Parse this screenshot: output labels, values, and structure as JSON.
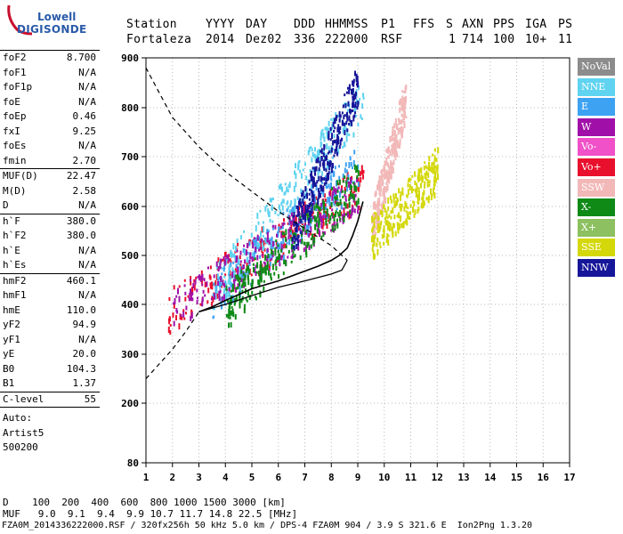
{
  "logo": {
    "line1": "Lowell",
    "line2": "DIGISONDE"
  },
  "header": {
    "labels": {
      "station": "Station",
      "year": "YYYY",
      "day": "DAY",
      "ddd": "DDD",
      "time": "HHMMSS",
      "p1": "P1",
      "ffs": "FFS",
      "s": "S",
      "axn": "AXN",
      "pps": "PPS",
      "iga": "IGA",
      "ps": "PS"
    },
    "values": {
      "station": "Fortaleza",
      "year": "2014",
      "day": "Dez02",
      "ddd": "336",
      "time": "222000",
      "p1": "RSF",
      "ffs": "",
      "s": "1",
      "axn": "714",
      "pps": "100",
      "iga": "10+",
      "ps": "11"
    }
  },
  "params": {
    "group1": [
      {
        "name": "foF2",
        "value": "8.700"
      },
      {
        "name": "foF1",
        "value": "N/A"
      },
      {
        "name": "foF1p",
        "value": "N/A"
      },
      {
        "name": "foE",
        "value": "N/A"
      },
      {
        "name": "foEp",
        "value": "0.46"
      },
      {
        "name": "fxI",
        "value": "9.25"
      },
      {
        "name": "foEs",
        "value": "N/A"
      },
      {
        "name": "fmin",
        "value": "2.70"
      }
    ],
    "group2": [
      {
        "name": "MUF(D)",
        "value": "22.47"
      },
      {
        "name": "M(D)",
        "value": "2.58"
      },
      {
        "name": "D",
        "value": "N/A"
      }
    ],
    "group3": [
      {
        "name": "h`F",
        "value": "380.0"
      },
      {
        "name": "h`F2",
        "value": "380.0"
      },
      {
        "name": "h`E",
        "value": "N/A"
      },
      {
        "name": "h`Es",
        "value": "N/A"
      }
    ],
    "group4": [
      {
        "name": "hmF2",
        "value": "460.1"
      },
      {
        "name": "hmF1",
        "value": "N/A"
      },
      {
        "name": "hmE",
        "value": "110.0"
      },
      {
        "name": "yF2",
        "value": "94.9"
      },
      {
        "name": "yF1",
        "value": "N/A"
      },
      {
        "name": "yE",
        "value": "20.0"
      },
      {
        "name": "B0",
        "value": "104.3"
      },
      {
        "name": "B1",
        "value": "1.37"
      }
    ],
    "group5": [
      {
        "name": "C-level",
        "value": "55"
      }
    ],
    "auto": [
      "Auto:",
      "Artist5",
      "500200"
    ]
  },
  "legend": [
    {
      "label": "NoVal",
      "color": "#8c8c8c"
    },
    {
      "label": "NNE",
      "color": "#5fd3f0"
    },
    {
      "label": "E",
      "color": "#3ea2f2"
    },
    {
      "label": "W",
      "color": "#a010a8"
    },
    {
      "label": "Vo-",
      "color": "#f050c8"
    },
    {
      "label": "Vo+",
      "color": "#e8102c"
    },
    {
      "label": "SSW",
      "color": "#f2b8b8"
    },
    {
      "label": "X-",
      "color": "#0f8a17"
    },
    {
      "label": "X+",
      "color": "#8cc060"
    },
    {
      "label": "SSE",
      "color": "#d4d80a"
    },
    {
      "label": "NNW",
      "color": "#16169a"
    }
  ],
  "chart_data": {
    "type": "scatter",
    "title": "",
    "xlabel": "",
    "ylabel": "",
    "xlim": [
      1,
      17
    ],
    "ylim": [
      80,
      900
    ],
    "x_ticks": [
      "1",
      "2",
      "3",
      "4",
      "5",
      "6",
      "7",
      "8",
      "9",
      "10",
      "11",
      "12",
      "13",
      "14",
      "15",
      "16",
      "17"
    ],
    "y_ticks": [
      "80",
      "200",
      "300",
      "400",
      "500",
      "600",
      "700",
      "800",
      "900"
    ],
    "y_tick_values": [
      80,
      200,
      300,
      400,
      500,
      600,
      700,
      800,
      900
    ],
    "y_scale": "nonlinear (virtual height)",
    "grid": true,
    "trace_profile": [
      [
        3.0,
        385
      ],
      [
        3.5,
        395
      ],
      [
        4.0,
        408
      ],
      [
        4.5,
        420
      ],
      [
        5.0,
        432
      ],
      [
        5.5,
        440
      ],
      [
        6.0,
        448
      ],
      [
        6.5,
        458
      ],
      [
        7.0,
        468
      ],
      [
        7.5,
        478
      ],
      [
        8.0,
        490
      ],
      [
        8.3,
        500
      ],
      [
        8.6,
        515
      ],
      [
        8.8,
        540
      ],
      [
        9.0,
        570
      ],
      [
        9.2,
        610
      ]
    ],
    "hv_curve_solid": [
      [
        3.0,
        385
      ],
      [
        4.0,
        400
      ],
      [
        5.0,
        418
      ],
      [
        6.0,
        435
      ],
      [
        7.0,
        448
      ],
      [
        7.5,
        455
      ],
      [
        8.0,
        462
      ],
      [
        8.4,
        470
      ],
      [
        8.6,
        490
      ]
    ],
    "hv_curve_dashed_low": [
      [
        1.0,
        250
      ],
      [
        1.5,
        280
      ],
      [
        2.0,
        310
      ],
      [
        2.5,
        345
      ],
      [
        3.0,
        385
      ]
    ],
    "hv_curve_dashed_high": [
      [
        1.0,
        880
      ],
      [
        1.5,
        830
      ],
      [
        2.0,
        780
      ],
      [
        3.0,
        720
      ],
      [
        4.0,
        670
      ],
      [
        5.0,
        630
      ],
      [
        6.0,
        590
      ],
      [
        7.0,
        555
      ],
      [
        8.0,
        520
      ],
      [
        8.6,
        490
      ]
    ],
    "echo_clusters": [
      {
        "direction": "Vo+",
        "x_range": [
          1.8,
          9.2
        ],
        "h_range": [
          390,
          650
        ]
      },
      {
        "direction": "E",
        "x_range": [
          3.5,
          9.0
        ],
        "h_range": [
          420,
          680
        ]
      },
      {
        "direction": "NNE",
        "x_range": [
          3.5,
          9.2
        ],
        "h_range": [
          430,
          820
        ]
      },
      {
        "direction": "W",
        "x_range": [
          2.0,
          9.0
        ],
        "h_range": [
          390,
          630
        ]
      },
      {
        "direction": "SSW",
        "x_range": [
          9.5,
          10.8
        ],
        "h_range": [
          560,
          820
        ]
      },
      {
        "direction": "SSE",
        "x_range": [
          9.5,
          12.0
        ],
        "h_range": [
          540,
          680
        ]
      },
      {
        "direction": "X-",
        "x_range": [
          4.0,
          9.0
        ],
        "h_range": [
          400,
          650
        ]
      },
      {
        "direction": "NNW",
        "x_range": [
          6.5,
          9.0
        ],
        "h_range": [
          540,
          850
        ]
      }
    ]
  },
  "bottom": {
    "d_row": "D    100  200  400  600  800 1000 1500 3000 [km]",
    "muf_row": "MUF   9.0  9.1  9.4  9.9 10.7 11.7 14.8 22.5 [MHz]"
  },
  "footer": "FZA0M_2014336222000.RSF / 320fx256h 50 kHz 5.0 km / DPS-4 FZA0M 904 / 3.9 S 321.6 E  Ion2Png 1.3.20"
}
